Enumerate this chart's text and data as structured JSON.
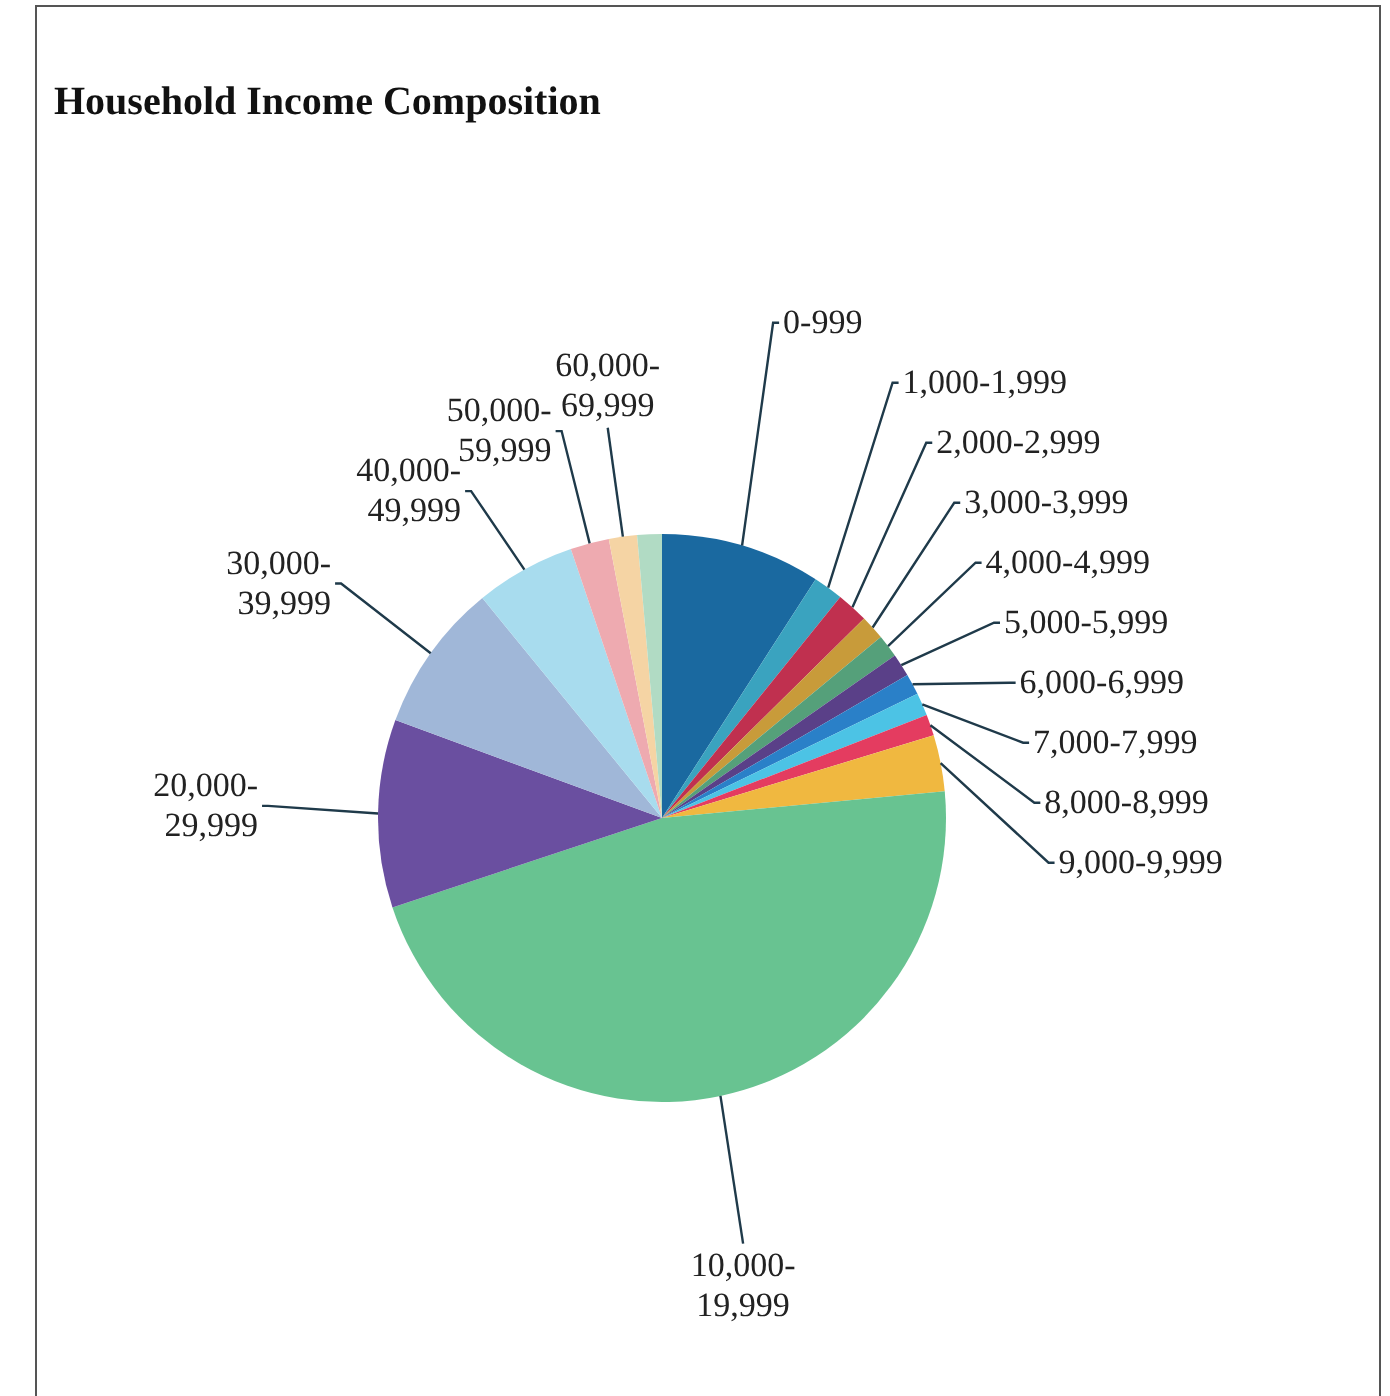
{
  "chart_data": {
    "type": "pie",
    "title": "Household Income Composition",
    "categories": [
      "0-999",
      "1,000-1,999",
      "2,000-2,999",
      "3,000-3,999",
      "4,000-4,999",
      "5,000-5,999",
      "6,000-6,999",
      "7,000-7,999",
      "8,000-8,999",
      "9,000-9,999",
      "10,000-19,999",
      "20,000-29,999",
      "30,000-39,999",
      "40,000-49,999",
      "50,000-59,999",
      "60,000-69,999",
      null
    ],
    "values": [
      9.1,
      1.7,
      1.8,
      1.4,
      1.3,
      1.3,
      1.2,
      1.3,
      1.2,
      3.2,
      46.4,
      10.7,
      8.5,
      5.7,
      2.2,
      1.6,
      1.4
    ],
    "colors": [
      "#1a69a0",
      "#3aa3bf",
      "#c0304f",
      "#c89b3a",
      "#55a07a",
      "#5a4088",
      "#2a80c8",
      "#4cc3e5",
      "#e43c60",
      "#f0b840",
      "#68c391",
      "#6a4fa0",
      "#a0b7d8",
      "#a8dcee",
      "#eeaab0",
      "#f5d4a4",
      "#b1dbc4"
    ]
  }
}
